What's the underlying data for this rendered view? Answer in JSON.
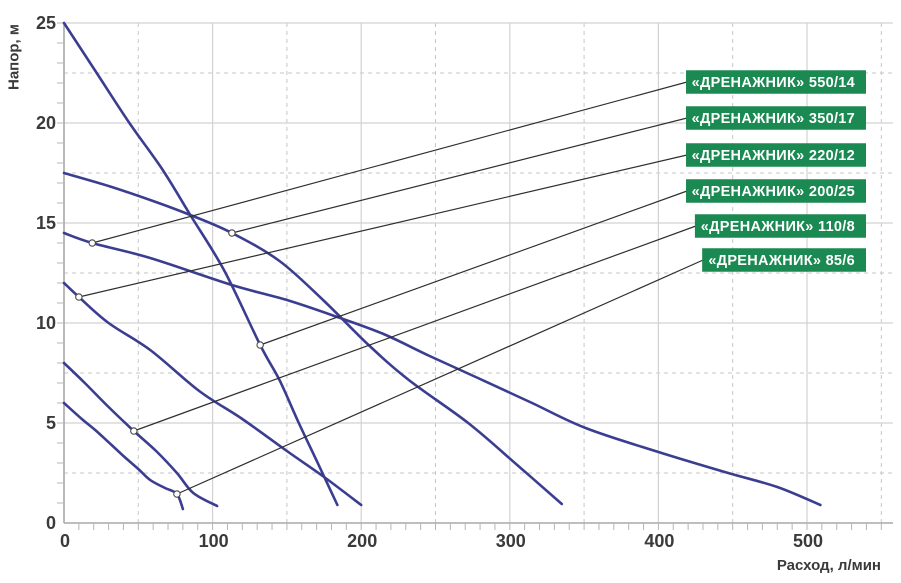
{
  "chart_data": {
    "type": "line",
    "title": "",
    "xlabel": "Расход, л/мин",
    "ylabel": "Напор, м",
    "xlim": [
      0,
      556
    ],
    "ylim": [
      0,
      25
    ],
    "x_major_ticks": [
      0,
      100,
      200,
      300,
      400,
      500
    ],
    "x_minor_step": 10,
    "y_major_ticks": [
      0,
      5,
      10,
      15,
      20,
      25
    ],
    "y_minor_step": 1,
    "x_dashed_gridlines": [
      50,
      150,
      250,
      350,
      450,
      550
    ],
    "y_dashed_gridlines": [
      2.5,
      7.5,
      12.5,
      17.5,
      22.5
    ],
    "grid": true,
    "legend_position": "callout-boxes-top-right",
    "series": [
      {
        "name": "«ДРЕНАЖНИК» 550/14",
        "model": "550/14",
        "points": [
          [
            0,
            14.5
          ],
          [
            19,
            14.0
          ],
          [
            58,
            13.25
          ],
          [
            113,
            11.9
          ],
          [
            150,
            11.15
          ],
          [
            182,
            10.35
          ],
          [
            215,
            9.45
          ],
          [
            246,
            8.35
          ],
          [
            280,
            7.2
          ],
          [
            315,
            6.0
          ],
          [
            351,
            4.75
          ],
          [
            400,
            3.55
          ],
          [
            447,
            2.5
          ],
          [
            480,
            1.8
          ],
          [
            509,
            0.9
          ]
        ],
        "callout_point": [
          19,
          14.0
        ]
      },
      {
        "name": "«ДРЕНАЖНИК» 350/17",
        "model": "350/17",
        "points": [
          [
            0,
            17.5
          ],
          [
            30,
            16.85
          ],
          [
            58,
            16.15
          ],
          [
            85,
            15.4
          ],
          [
            113,
            14.5
          ],
          [
            145,
            13.1
          ],
          [
            175,
            11.1
          ],
          [
            205,
            8.9
          ],
          [
            232,
            7.15
          ],
          [
            272,
            5.0
          ],
          [
            305,
            2.9
          ],
          [
            335,
            0.95
          ]
        ],
        "callout_point": [
          113,
          14.5
        ]
      },
      {
        "name": "«ДРЕНАЖНИК» 220/12",
        "model": "220/12",
        "points": [
          [
            0,
            12.0
          ],
          [
            10,
            11.3
          ],
          [
            30,
            10.0
          ],
          [
            58,
            8.65
          ],
          [
            91,
            6.6
          ],
          [
            120,
            5.2
          ],
          [
            150,
            3.6
          ],
          [
            175,
            2.3
          ],
          [
            200,
            0.9
          ]
        ],
        "callout_point": [
          10,
          11.3
        ]
      },
      {
        "name": "«ДРЕНАЖНИК» 200/25",
        "model": "200/25",
        "points": [
          [
            0,
            25.0
          ],
          [
            22,
            22.5
          ],
          [
            44,
            20.0
          ],
          [
            66,
            17.7
          ],
          [
            85,
            15.4
          ],
          [
            108,
            12.6
          ],
          [
            132,
            8.9
          ],
          [
            145,
            7.15
          ],
          [
            158,
            5.0
          ],
          [
            172,
            2.8
          ],
          [
            184,
            0.9
          ]
        ],
        "callout_point": [
          132,
          8.9
        ]
      },
      {
        "name": "«ДРЕНАЖНИК» 110/8",
        "model": "110/8",
        "points": [
          [
            0,
            8.0
          ],
          [
            14,
            7.0
          ],
          [
            30,
            5.8
          ],
          [
            47,
            4.6
          ],
          [
            62,
            3.6
          ],
          [
            76,
            2.5
          ],
          [
            87,
            1.5
          ],
          [
            103,
            0.85
          ]
        ],
        "callout_point": [
          47,
          4.6
        ]
      },
      {
        "name": "«ДРЕНАЖНИК» 85/6",
        "model": "85/6",
        "points": [
          [
            0,
            6.0
          ],
          [
            12,
            5.2
          ],
          [
            21,
            4.65
          ],
          [
            32,
            3.9
          ],
          [
            40,
            3.35
          ],
          [
            50,
            2.7
          ],
          [
            58,
            2.15
          ],
          [
            68,
            1.75
          ],
          [
            76,
            1.45
          ],
          [
            80,
            0.7
          ]
        ],
        "callout_point": [
          76,
          1.45
        ]
      }
    ],
    "colors": {
      "curve": "#3b3e90",
      "callout_bg": "#1b8a52",
      "callout_text": "#ffffff",
      "leader_line": "#2f2f2f",
      "marker_fill": "#ffffff",
      "marker_stroke": "#4a4a4a",
      "grid_solid": "#d2d2d2",
      "grid_dashed": "#c6c6c6",
      "axis": "#a8a8a8",
      "tick": "#b4b4b4",
      "tick_text": "#3a3a3a"
    }
  }
}
